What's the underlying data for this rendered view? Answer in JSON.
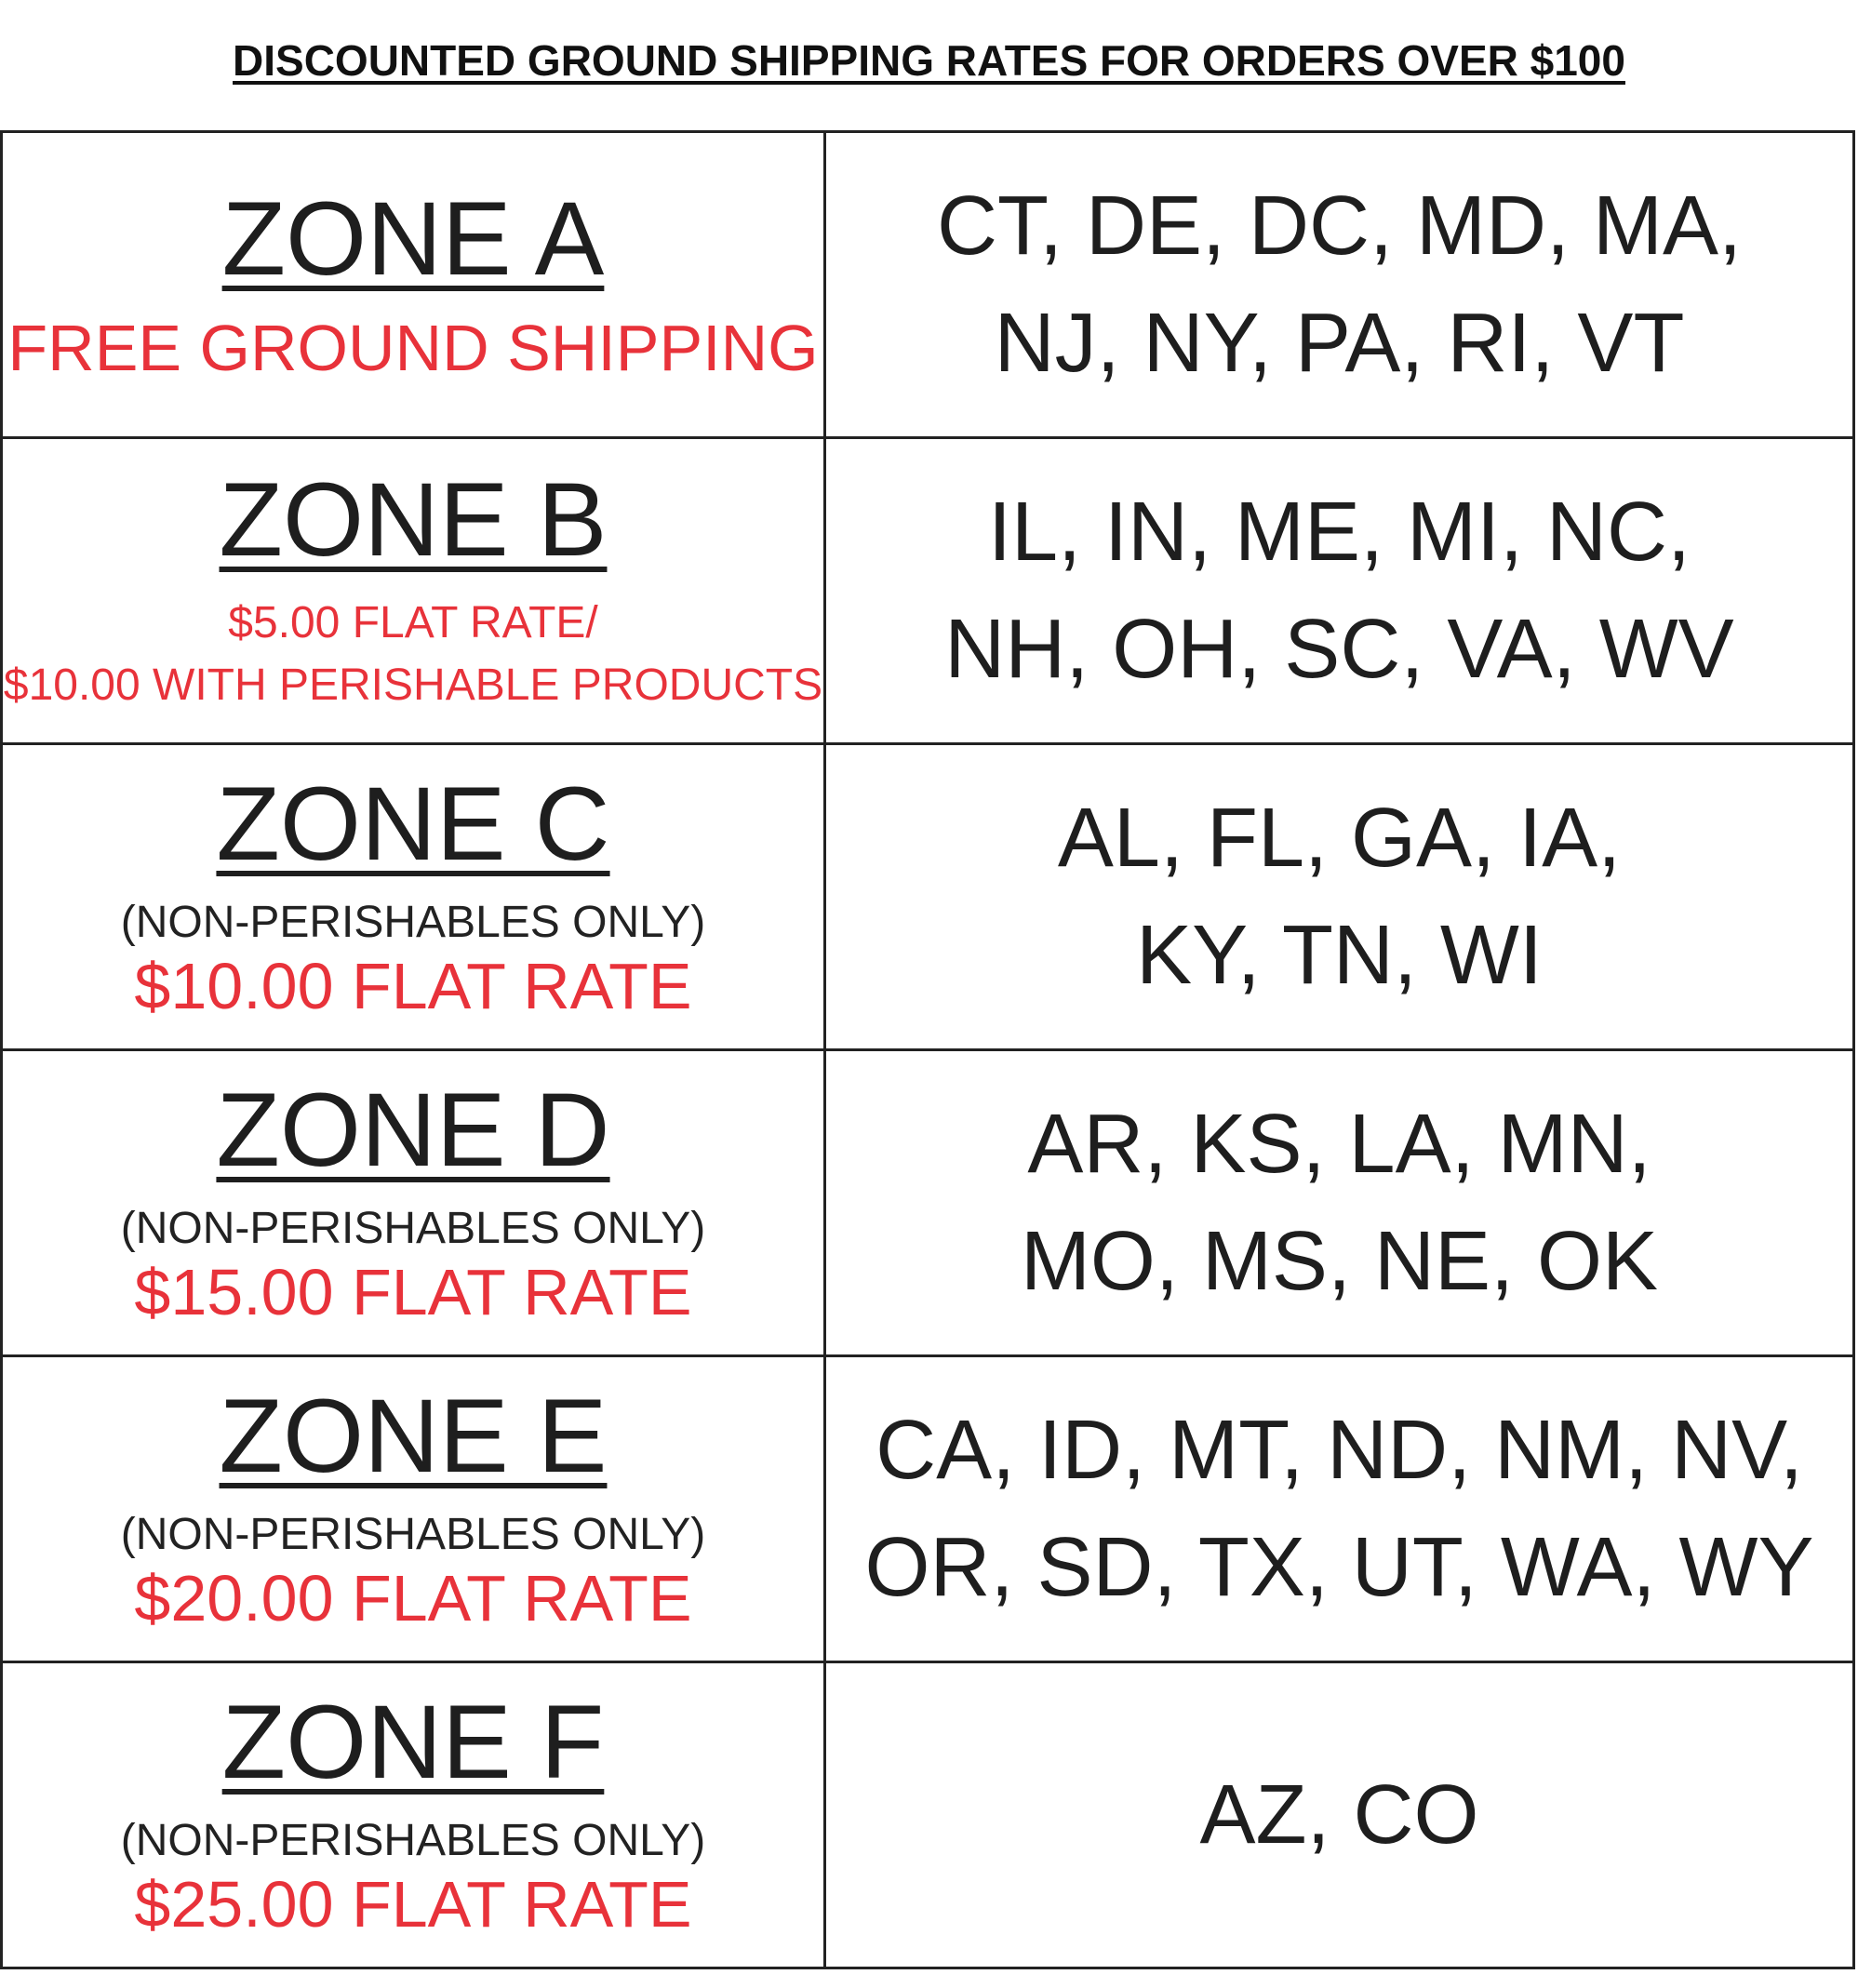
{
  "title": "DISCOUNTED GROUND SHIPPING RATES FOR ORDERS OVER $100",
  "zones": [
    {
      "zone": "ZONE A",
      "rate": [
        "FREE GROUND SHIPPING"
      ],
      "states": [
        "CT, DE, DC, MD, MA,",
        "NJ, NY, PA, RI, VT"
      ]
    },
    {
      "zone": "ZONE B",
      "rate": [
        "$5.00 FLAT RATE/",
        "$10.00 WITH PERISHABLE PRODUCTS"
      ],
      "states": [
        "IL, IN, ME, MI, NC,",
        "NH, OH, SC, VA, WV"
      ]
    },
    {
      "zone": "ZONE C",
      "restriction": "(NON-PERISHABLES ONLY)",
      "rate": [
        "$10.00 FLAT RATE"
      ],
      "states": [
        "AL, FL, GA, IA,",
        "KY, TN, WI"
      ]
    },
    {
      "zone": "ZONE D",
      "restriction": "(NON-PERISHABLES ONLY)",
      "rate": [
        "$15.00 FLAT RATE"
      ],
      "states": [
        "AR, KS, LA, MN,",
        "MO, MS, NE, OK"
      ]
    },
    {
      "zone": "ZONE E",
      "restriction": "(NON-PERISHABLES ONLY)",
      "rate": [
        "$20.00 FLAT RATE"
      ],
      "states": [
        "CA, ID, MT, ND, NM, NV,",
        "OR, SD, TX, UT, WA, WY"
      ]
    },
    {
      "zone": "ZONE F",
      "restriction": "(NON-PERISHABLES ONLY)",
      "rate": [
        "$25.00 FLAT RATE"
      ],
      "states": [
        "AZ, CO"
      ]
    }
  ]
}
